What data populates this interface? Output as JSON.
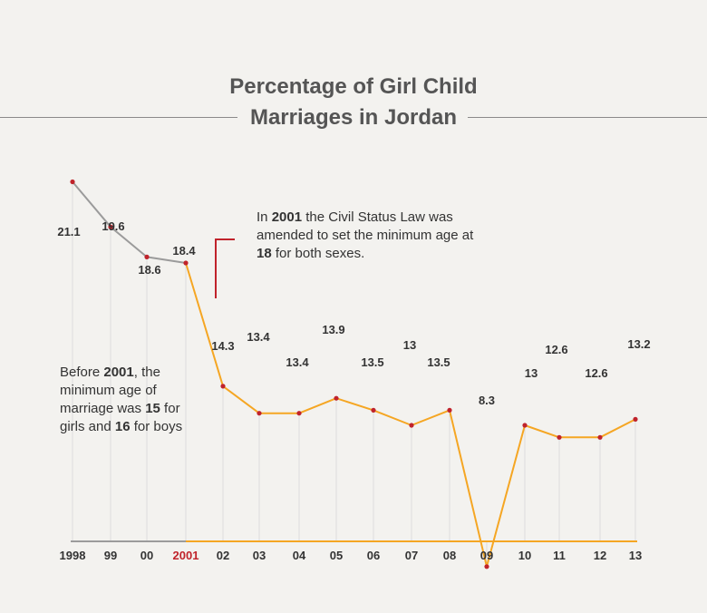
{
  "title": [
    "Percentage of Girl Child",
    "Marriages in Jordan"
  ],
  "annotations": {
    "note_2001": {
      "parts": [
        {
          "text": "In ",
          "bold": false
        },
        {
          "text": "2001",
          "bold": true
        },
        {
          "text": " the Civil Status Law was amended to set the minimum age at ",
          "bold": false
        },
        {
          "text": "18",
          "bold": true
        },
        {
          "text": " for both sexes.",
          "bold": false
        }
      ]
    },
    "note_before": {
      "parts": [
        {
          "text": "Before ",
          "bold": false
        },
        {
          "text": "2001",
          "bold": true
        },
        {
          "text": ", the minimum age of marriage was ",
          "bold": false
        },
        {
          "text": "15",
          "bold": true
        },
        {
          "text": " for girls and ",
          "bold": false
        },
        {
          "text": "16",
          "bold": true
        },
        {
          "text": " for boys",
          "bold": false
        }
      ]
    }
  },
  "colors": {
    "before_law": "#9b9b9b",
    "after_law": "#f5a623",
    "point": "#c0232b",
    "highlight_tick": "#c0232b",
    "background": "#f3f2ef"
  },
  "chart_data": {
    "type": "line",
    "x": [
      1998,
      1999,
      2000,
      2001,
      2002,
      2003,
      2004,
      2005,
      2006,
      2007,
      2008,
      2009,
      2010,
      2011,
      2012,
      2013
    ],
    "tick_labels": [
      "1998",
      "99",
      "00",
      "2001",
      "02",
      "03",
      "04",
      "05",
      "06",
      "07",
      "08",
      "09",
      "10",
      "11",
      "12",
      "13"
    ],
    "highlight_tick": "2001",
    "values": [
      21.1,
      19.6,
      18.6,
      18.4,
      14.3,
      13.4,
      13.4,
      13.9,
      13.5,
      13,
      13.5,
      8.3,
      13,
      12.6,
      12.6,
      13.2
    ],
    "value_labels": [
      "21.1",
      "19.6",
      "18.6",
      "18.4",
      "14.3",
      "13.4",
      "13.4",
      "13.9",
      "13.5",
      "13",
      "13.5",
      "8.3",
      "13",
      "12.6",
      "12.6",
      "13.2"
    ],
    "label_placement": [
      "below",
      "above",
      "below",
      "above",
      "below",
      "above",
      "below",
      "above",
      "below",
      "above",
      "below",
      "above",
      "below",
      "above",
      "below",
      "above"
    ],
    "segments": [
      {
        "from": 1998,
        "to": 2001,
        "color": "#9b9b9b"
      },
      {
        "from": 2001,
        "to": 2013,
        "color": "#f5a623"
      }
    ],
    "grid": "vertical lines at each year",
    "legend": "none"
  }
}
